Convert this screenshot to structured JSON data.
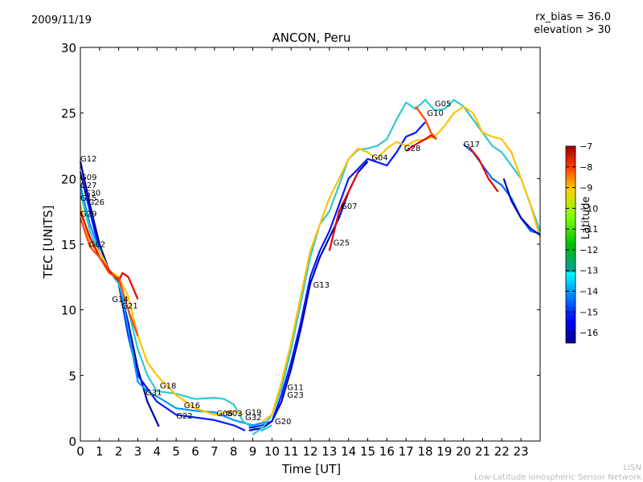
{
  "chart_data": {
    "type": "line",
    "title": "ANCON, Peru",
    "date": "2009/11/19",
    "annotations": [
      "rx_bias = 36.0",
      "elevation > 30"
    ],
    "xlabel": "Time [UT]",
    "ylabel": "TEC [UNITS]",
    "xlim": [
      0,
      24
    ],
    "ylim": [
      0,
      30
    ],
    "xticks": [
      "0",
      "1",
      "2",
      "3",
      "4",
      "5",
      "6",
      "7",
      "8",
      "9",
      "10",
      "11",
      "12",
      "13",
      "14",
      "15",
      "16",
      "17",
      "18",
      "19",
      "20",
      "21",
      "22",
      "23"
    ],
    "yticks": [
      "0",
      "5",
      "10",
      "15",
      "20",
      "25",
      "30"
    ],
    "grid": false,
    "colorbar": {
      "label": "Latitude",
      "range": [
        -16.5,
        -7
      ],
      "ticks": [
        "-7",
        "-8",
        "-9",
        "-10",
        "-11",
        "-12",
        "-13",
        "-14",
        "-15",
        "-16"
      ],
      "colormap": "jet"
    },
    "credit": [
      "LISN",
      "Low-Latitude Ionospheric Sensor Network"
    ],
    "satellite_labels": [
      {
        "name": "G12",
        "x": 0.0,
        "y": 21.3
      },
      {
        "name": "G09",
        "x": 0.0,
        "y": 19.9
      },
      {
        "name": "G27",
        "x": 0.0,
        "y": 19.3
      },
      {
        "name": "G30",
        "x": 0.2,
        "y": 18.7
      },
      {
        "name": "G15",
        "x": 0.0,
        "y": 18.3
      },
      {
        "name": "G26",
        "x": 0.4,
        "y": 18.0
      },
      {
        "name": "G29",
        "x": 0.0,
        "y": 17.1
      },
      {
        "name": "G02",
        "x": 0.45,
        "y": 14.8
      },
      {
        "name": "G14",
        "x": 1.65,
        "y": 10.6
      },
      {
        "name": "G21",
        "x": 2.15,
        "y": 10.1
      },
      {
        "name": "G31",
        "x": 3.4,
        "y": 3.5
      },
      {
        "name": "G18",
        "x": 4.15,
        "y": 4.0
      },
      {
        "name": "G16",
        "x": 5.4,
        "y": 2.5
      },
      {
        "name": "G22",
        "x": 5.0,
        "y": 1.7
      },
      {
        "name": "G06",
        "x": 7.1,
        "y": 1.9
      },
      {
        "name": "G03",
        "x": 7.6,
        "y": 1.9
      },
      {
        "name": "G19",
        "x": 8.6,
        "y": 2.0
      },
      {
        "name": "G32",
        "x": 8.6,
        "y": 1.6
      },
      {
        "name": "G20",
        "x": 10.15,
        "y": 1.3
      },
      {
        "name": "G11",
        "x": 10.8,
        "y": 3.9
      },
      {
        "name": "G23",
        "x": 10.8,
        "y": 3.3
      },
      {
        "name": "G13",
        "x": 12.15,
        "y": 11.7
      },
      {
        "name": "G25",
        "x": 13.2,
        "y": 14.9
      },
      {
        "name": "G07",
        "x": 13.6,
        "y": 17.7
      },
      {
        "name": "G04",
        "x": 15.2,
        "y": 21.4
      },
      {
        "name": "G28",
        "x": 16.9,
        "y": 22.1
      },
      {
        "name": "G05",
        "x": 18.5,
        "y": 25.5
      },
      {
        "name": "G10",
        "x": 18.1,
        "y": 24.8
      },
      {
        "name": "G17",
        "x": 20.0,
        "y": 22.4
      }
    ],
    "series": [
      {
        "name": "S1",
        "lat": -16.2,
        "x": [
          0,
          0.5,
          1,
          1.5,
          2,
          2.5,
          3,
          3.5,
          4.1
        ],
        "y": [
          21.3,
          18,
          15,
          13,
          12,
          9,
          5.5,
          3,
          1.1
        ]
      },
      {
        "name": "S2",
        "lat": -15,
        "x": [
          0,
          0.5,
          1,
          1.5,
          2,
          2.5,
          3,
          3.5,
          4,
          5,
          6,
          7,
          8,
          8.6
        ],
        "y": [
          20.5,
          17.5,
          14.5,
          13,
          12,
          8,
          5,
          4,
          3,
          2,
          1.8,
          1.6,
          1.2,
          0.8
        ]
      },
      {
        "name": "S3",
        "lat": -13.5,
        "x": [
          0,
          0.5,
          1,
          1.5,
          2,
          2.5,
          3,
          3.5,
          4,
          5,
          6,
          7,
          8,
          9,
          9.8
        ],
        "y": [
          19.5,
          16.5,
          14.5,
          13,
          12.3,
          8.5,
          4.5,
          3.8,
          3.4,
          2.5,
          2.3,
          2.2,
          1.6,
          1.2,
          1.5
        ]
      },
      {
        "name": "S4",
        "lat": -12.5,
        "x": [
          0,
          0.5,
          1,
          1.5,
          2,
          2.5,
          3,
          3.5,
          4,
          5,
          6,
          7,
          7.5,
          8,
          8.5,
          9,
          9.5,
          10
        ],
        "y": [
          19,
          16,
          14,
          13,
          12,
          10,
          7,
          5,
          3.8,
          3.6,
          3.2,
          3.3,
          3.2,
          2.8,
          1.5,
          1,
          0.8,
          1.2
        ]
      },
      {
        "name": "S5",
        "lat": -10.5,
        "x": [
          0,
          0.5,
          1,
          1.5,
          2,
          2.5,
          3,
          3.5,
          4,
          5,
          6,
          7,
          8,
          8.5
        ],
        "y": [
          18,
          15,
          14.5,
          13,
          12.5,
          11,
          8,
          6,
          5,
          3.5,
          2.5,
          2,
          2.3,
          2
        ]
      },
      {
        "name": "S6",
        "lat": -8,
        "x": [
          0,
          0.5,
          1,
          1.5,
          2,
          2.2,
          2.5,
          2.8,
          3
        ],
        "y": [
          17.5,
          15.5,
          14,
          13,
          12.2,
          12.8,
          12.5,
          11.5,
          10.8
        ]
      },
      {
        "name": "S7",
        "lat": -9,
        "x": [
          0,
          0.5,
          1,
          1.5,
          2,
          2.5,
          3
        ],
        "y": [
          17,
          14.8,
          14,
          12.8,
          12.4,
          10,
          8
        ]
      },
      {
        "name": "E1",
        "lat": -16,
        "x": [
          8.8,
          9.5,
          10,
          10.5,
          11,
          11.5,
          12,
          12.5,
          13,
          13.5,
          14,
          14.5,
          15
        ],
        "y": [
          0.8,
          1,
          1.5,
          3,
          5.5,
          8.5,
          12,
          14,
          15.5,
          17,
          19,
          20.5,
          21.3
        ]
      },
      {
        "name": "E2",
        "lat": -15,
        "x": [
          8.8,
          9.5,
          10,
          10.5,
          11,
          11.5,
          12,
          12.5,
          13,
          13.5,
          14,
          15,
          16,
          16.5,
          17,
          17.5,
          18
        ],
        "y": [
          1,
          1.2,
          1.5,
          3.5,
          6,
          9,
          12.5,
          14.5,
          16,
          18,
          20,
          21.5,
          21,
          22,
          23.2,
          23.5,
          24.3
        ]
      },
      {
        "name": "E3",
        "lat": -12.5,
        "x": [
          9,
          9.5,
          10,
          10.5,
          11,
          11.5,
          12,
          12.5,
          13,
          13.5,
          14,
          14.5,
          15,
          15.5,
          16,
          16.5,
          17,
          17.5,
          18,
          18.5,
          19,
          19.5,
          20,
          20.5,
          21,
          21.5,
          22,
          22.5,
          23,
          23.5,
          24
        ],
        "y": [
          0.5,
          1,
          2,
          4,
          7,
          10.5,
          14,
          16.5,
          17.5,
          19.5,
          21.5,
          22.2,
          22.3,
          22.5,
          23,
          24.5,
          25.8,
          25.3,
          26,
          25.2,
          25.3,
          26,
          25.5,
          24.5,
          23.5,
          22.5,
          22,
          21,
          20,
          18,
          16
        ]
      },
      {
        "name": "E4",
        "lat": -10.5,
        "x": [
          9.5,
          10,
          10.5,
          11,
          11.5,
          12,
          12.5,
          13,
          13.5,
          14,
          14.5,
          15,
          15.5,
          16,
          16.5,
          17,
          17.5,
          18,
          18.5,
          19,
          19.5,
          20,
          20.5,
          21,
          21.5,
          22,
          22.5,
          23,
          23.5,
          24
        ],
        "y": [
          1.5,
          2,
          4.5,
          7.5,
          11,
          14.5,
          16.5,
          18.5,
          20,
          21.5,
          22.3,
          22,
          21.5,
          22.3,
          22.8,
          22.5,
          22.9,
          23,
          23.2,
          24,
          25,
          25.5,
          25,
          23.5,
          23.2,
          23,
          22,
          20,
          18,
          15.5
        ]
      },
      {
        "name": "E5",
        "lat": -8,
        "x": [
          13,
          13.5,
          14,
          14.5
        ],
        "y": [
          14.5,
          17.5,
          19,
          20.5
        ]
      },
      {
        "name": "E6",
        "lat": -8,
        "x": [
          17,
          17.5,
          18,
          18.3,
          18.6
        ],
        "y": [
          22.1,
          22.6,
          23,
          23.3,
          23
        ]
      },
      {
        "name": "E7",
        "lat": -9,
        "x": [
          17.5,
          18,
          18.3,
          18.6
        ],
        "y": [
          25.5,
          24.5,
          23.5,
          23.0
        ]
      },
      {
        "name": "E8",
        "lat": -14,
        "x": [
          20,
          20.5,
          21,
          21.5,
          22,
          22.5,
          23,
          23.5,
          24
        ],
        "y": [
          22.6,
          22,
          21,
          20,
          19.5,
          18.5,
          17,
          16,
          15.8
        ]
      },
      {
        "name": "E9",
        "lat": -8,
        "x": [
          20.3,
          20.8,
          21.3,
          21.8
        ],
        "y": [
          22.4,
          21.5,
          20,
          19
        ]
      },
      {
        "name": "E10",
        "lat": -16,
        "x": [
          22.1,
          22.5,
          23,
          23.5,
          24
        ],
        "y": [
          20,
          18.3,
          17,
          16.2,
          15.7
        ]
      }
    ]
  }
}
